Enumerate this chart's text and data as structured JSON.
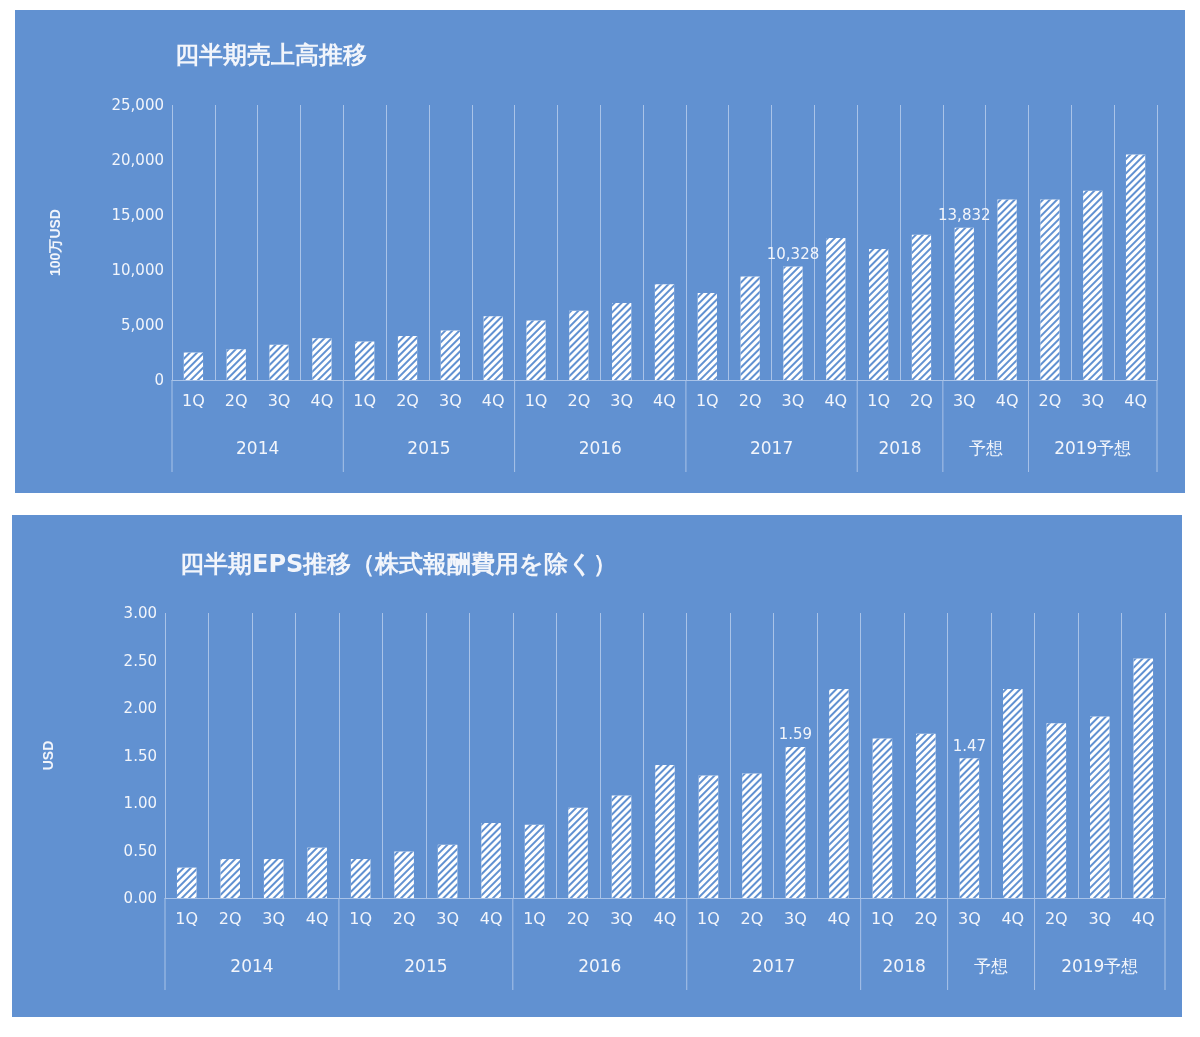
{
  "chart_data": [
    {
      "type": "bar",
      "title": "四半期売上高推移",
      "ylabel": "100万USD",
      "categories": [
        "1Q",
        "2Q",
        "3Q",
        "4Q",
        "1Q",
        "2Q",
        "3Q",
        "4Q",
        "1Q",
        "2Q",
        "3Q",
        "4Q",
        "1Q",
        "2Q",
        "3Q",
        "4Q",
        "1Q",
        "2Q",
        "3Q",
        "4Q",
        "2Q",
        "3Q",
        "4Q"
      ],
      "annotations": [
        "2014",
        "2015",
        "2016",
        "2017",
        "2018",
        "予想",
        "2019予想"
      ],
      "values": [
        2500,
        2800,
        3200,
        3800,
        3500,
        4000,
        4500,
        5800,
        5400,
        6300,
        7000,
        8700,
        7900,
        9400,
        10328,
        12900,
        11900,
        13200,
        13832,
        16400,
        16400,
        17200,
        20500
      ],
      "value_labels": [
        null,
        null,
        null,
        null,
        null,
        null,
        null,
        null,
        null,
        null,
        null,
        null,
        null,
        null,
        "10,328",
        null,
        null,
        null,
        "13,832",
        null,
        null,
        null,
        null
      ],
      "color": "#ffffff",
      "ylim": [
        0,
        25000
      ],
      "yticks": [
        {
          "value": 0,
          "label": "0"
        },
        {
          "value": 5000,
          "label": "5,000"
        },
        {
          "value": 10000,
          "label": "10,000"
        },
        {
          "value": 15000,
          "label": "15,000"
        },
        {
          "value": 20000,
          "label": "20,000"
        },
        {
          "value": 25000,
          "label": "25,000"
        }
      ],
      "grid": "x"
    },
    {
      "type": "bar",
      "title": "四半期EPS推移（株式報酬費用を除く）",
      "ylabel": "USD",
      "categories": [
        "1Q",
        "2Q",
        "3Q",
        "4Q",
        "1Q",
        "2Q",
        "3Q",
        "4Q",
        "1Q",
        "2Q",
        "3Q",
        "4Q",
        "1Q",
        "2Q",
        "3Q",
        "4Q",
        "1Q",
        "2Q",
        "3Q",
        "4Q",
        "2Q",
        "3Q",
        "4Q"
      ],
      "annotations": [
        "2014",
        "2015",
        "2016",
        "2017",
        "2018",
        "予想",
        "2019予想"
      ],
      "values": [
        0.32,
        0.41,
        0.41,
        0.53,
        0.41,
        0.49,
        0.56,
        0.79,
        0.77,
        0.95,
        1.08,
        1.4,
        1.29,
        1.31,
        1.59,
        2.2,
        1.68,
        1.73,
        1.47,
        2.2,
        1.84,
        1.91,
        2.52
      ],
      "value_labels": [
        null,
        null,
        null,
        null,
        null,
        null,
        null,
        null,
        null,
        null,
        null,
        null,
        null,
        null,
        "1.59",
        null,
        null,
        null,
        "1.47",
        null,
        null,
        null,
        null
      ],
      "color": "#ffffff",
      "ylim": [
        0,
        3
      ],
      "yticks": [
        {
          "value": 0,
          "label": "0.00"
        },
        {
          "value": 0.5,
          "label": "0.50"
        },
        {
          "value": 1,
          "label": "1.00"
        },
        {
          "value": 1.5,
          "label": "1.50"
        },
        {
          "value": 2,
          "label": "2.00"
        },
        {
          "value": 2.5,
          "label": "2.50"
        },
        {
          "value": 3,
          "label": "3.00"
        }
      ],
      "grid": "x"
    }
  ]
}
